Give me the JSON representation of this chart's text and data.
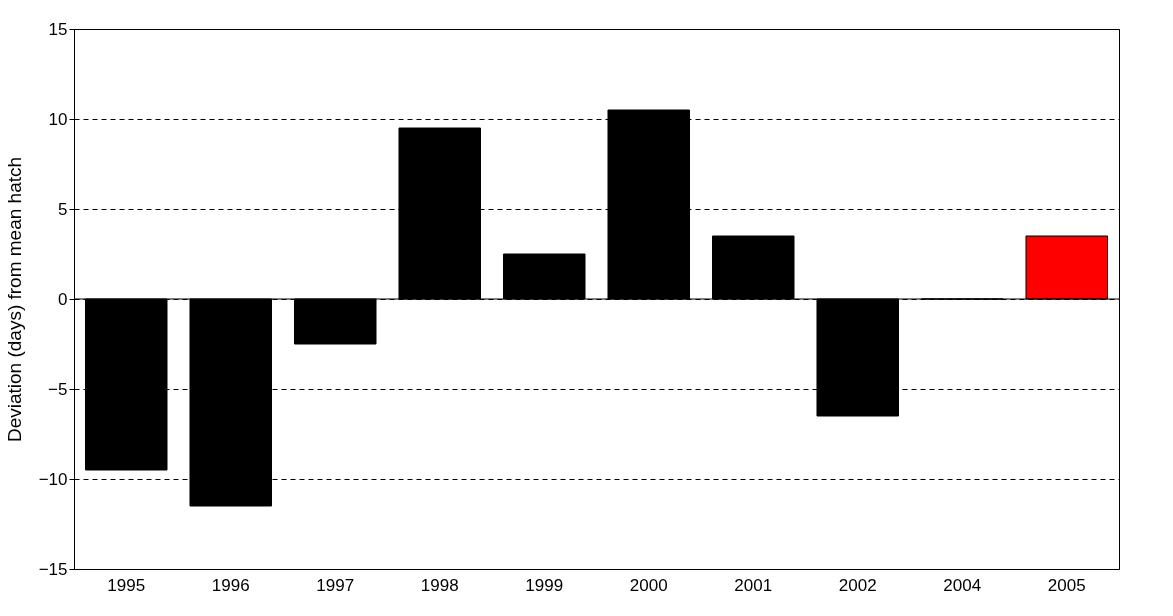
{
  "chart_data": {
    "type": "bar",
    "ylabel": "Deviation (days) from mean hatch",
    "categories": [
      "1995",
      "1996",
      "1997",
      "1998",
      "1999",
      "2000",
      "2001",
      "2002",
      "2004",
      "2005"
    ],
    "values": [
      -9.5,
      -11.5,
      -2.5,
      9.5,
      2.5,
      10.5,
      3.5,
      -6.5,
      0,
      3.5
    ],
    "colors": [
      "#000000",
      "#000000",
      "#000000",
      "#000000",
      "#000000",
      "#000000",
      "#000000",
      "#000000",
      "#000000",
      "#ff0000"
    ],
    "ylim": [
      -15,
      15
    ],
    "yticks": [
      -15,
      -10,
      -5,
      0,
      5,
      10,
      15
    ],
    "grid": "y",
    "line_style": "dashed",
    "legend": false
  }
}
